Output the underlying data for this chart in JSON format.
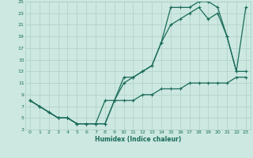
{
  "title": "",
  "xlabel": "Humidex (Indice chaleur)",
  "xlim": [
    -0.5,
    23.5
  ],
  "ylim": [
    3,
    25
  ],
  "xticks": [
    0,
    1,
    2,
    3,
    4,
    5,
    6,
    7,
    8,
    9,
    10,
    11,
    12,
    13,
    14,
    15,
    16,
    17,
    18,
    19,
    20,
    21,
    22,
    23
  ],
  "yticks": [
    3,
    5,
    7,
    9,
    11,
    13,
    15,
    17,
    19,
    21,
    23,
    25
  ],
  "bg_color": "#cce8e0",
  "line_color": "#1a6b5a",
  "grid_color": "#aecfc7",
  "line1_x": [
    0,
    1,
    2,
    3,
    4,
    5,
    6,
    7,
    8,
    9,
    10,
    11,
    12,
    13,
    14,
    15,
    16,
    17,
    18,
    19,
    20,
    21,
    22,
    23
  ],
  "line1_y": [
    8,
    7,
    6,
    5,
    5,
    4,
    4,
    4,
    4,
    8,
    12,
    12,
    13,
    14,
    18,
    24,
    24,
    24,
    25,
    25,
    24,
    19,
    13,
    24
  ],
  "line2_x": [
    0,
    1,
    2,
    3,
    4,
    5,
    6,
    7,
    8,
    9,
    10,
    11,
    12,
    13,
    14,
    15,
    16,
    17,
    18,
    19,
    20,
    21,
    22,
    23
  ],
  "line2_y": [
    8,
    7,
    6,
    5,
    5,
    4,
    4,
    4,
    4,
    8,
    11,
    12,
    13,
    14,
    18,
    21,
    22,
    23,
    24,
    22,
    23,
    19,
    13,
    13
  ],
  "line3_x": [
    0,
    1,
    2,
    3,
    4,
    5,
    6,
    7,
    8,
    9,
    10,
    11,
    12,
    13,
    14,
    15,
    16,
    17,
    18,
    19,
    20,
    21,
    22,
    23
  ],
  "line3_y": [
    8,
    7,
    6,
    5,
    5,
    4,
    4,
    4,
    8,
    8,
    8,
    8,
    9,
    9,
    10,
    10,
    10,
    11,
    11,
    11,
    11,
    11,
    12,
    12
  ]
}
